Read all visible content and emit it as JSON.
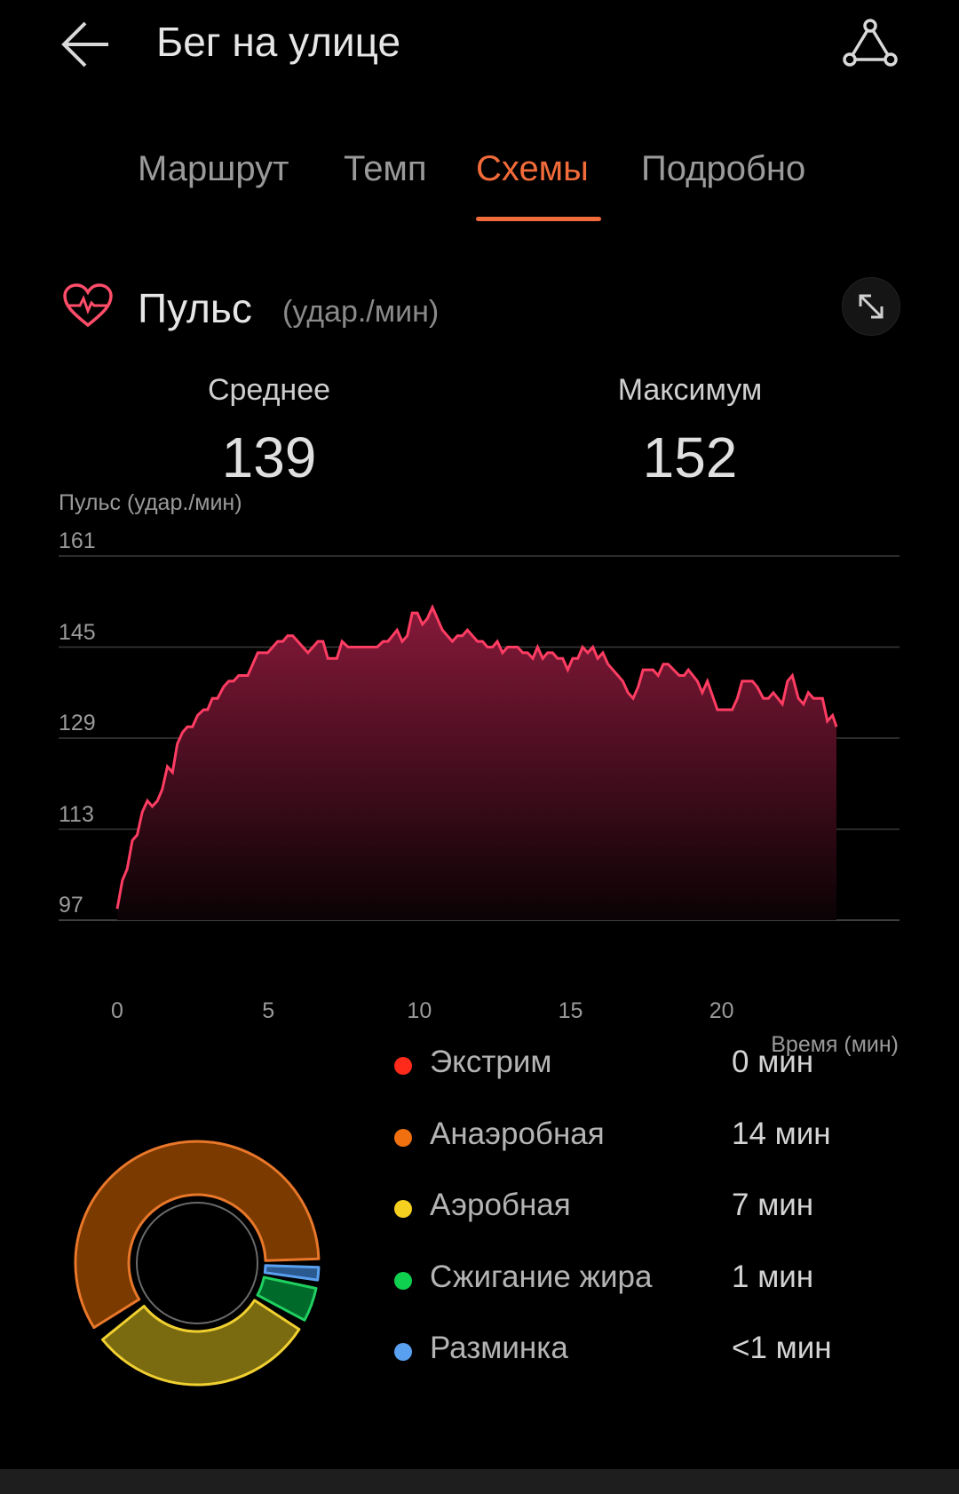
{
  "header": {
    "title": "Бег на улице",
    "back_icon": "arrow-left-icon",
    "share_icon": "route-share-icon"
  },
  "tabs": [
    {
      "label": "Маршрут"
    },
    {
      "label": "Темп"
    },
    {
      "label": "Схемы",
      "active": true
    },
    {
      "label": "Подробно"
    }
  ],
  "accent": "#f26b3a",
  "section": {
    "title": "Пульс",
    "unit": "(удар./мин)",
    "icon": "heart-pulse-icon",
    "expand_icon": "expand-icon"
  },
  "stats": {
    "avg_label": "Среднее",
    "avg_value": "139",
    "max_label": "Максимум",
    "max_value": "152"
  },
  "chart_data": {
    "type": "area",
    "ylabel": "Пульс (удар./мин)",
    "xlabel": "Время (мин)",
    "yticks": [
      "161",
      "145",
      "129",
      "113",
      "97"
    ],
    "xticks": [
      "0",
      "5",
      "10",
      "15",
      "20"
    ],
    "ylim": [
      97,
      161
    ],
    "xlim": [
      0,
      23.8
    ],
    "grid": true,
    "line_color": "#ff3d63",
    "x": [
      0,
      0.17,
      0.33,
      0.5,
      0.66,
      0.83,
      1.0,
      1.16,
      1.33,
      1.49,
      1.66,
      1.83,
      1.99,
      2.16,
      2.32,
      2.49,
      2.66,
      2.86,
      2.99,
      3.15,
      3.32,
      3.52,
      3.69,
      3.85,
      4.02,
      4.32,
      4.65,
      4.98,
      5.31,
      5.48,
      5.64,
      5.81,
      6.31,
      6.64,
      6.81,
      6.97,
      7.27,
      7.44,
      7.64,
      8.6,
      8.8,
      8.96,
      9.26,
      9.43,
      9.6,
      9.76,
      9.93,
      10.1,
      10.26,
      10.43,
      10.76,
      11.09,
      11.26,
      11.42,
      11.59,
      11.92,
      12.09,
      12.25,
      12.42,
      12.58,
      12.75,
      12.92,
      13.25,
      13.42,
      13.58,
      13.75,
      13.91,
      14.08,
      14.24,
      14.41,
      14.57,
      14.74,
      14.91,
      15.07,
      15.24,
      15.4,
      15.57,
      15.74,
      15.9,
      16.07,
      16.24,
      16.73,
      16.9,
      17.07,
      17.24,
      17.4,
      17.73,
      17.9,
      18.07,
      18.23,
      18.6,
      18.76,
      18.9,
      19.2,
      19.36,
      19.53,
      19.86,
      20.35,
      20.52,
      20.68,
      21.02,
      21.18,
      21.38,
      21.55,
      21.71,
      22.01,
      22.18,
      22.34,
      22.54,
      22.71,
      22.87,
      23.04,
      23.34,
      23.5,
      23.67,
      23.8
    ],
    "y": [
      99,
      104,
      106,
      111,
      112,
      116,
      118,
      117,
      118,
      120,
      124,
      123,
      128,
      130,
      131,
      131,
      133,
      134,
      134,
      136,
      136,
      138,
      139,
      139,
      140,
      140,
      144,
      144,
      146,
      146,
      147,
      147,
      144,
      146,
      146,
      143,
      143,
      146,
      145,
      145,
      146,
      146,
      148,
      146,
      147,
      151,
      151,
      149,
      150,
      152,
      148,
      146,
      147,
      147,
      148,
      146,
      146,
      145,
      145,
      146,
      144,
      145,
      145,
      144,
      144,
      143,
      145,
      143,
      144,
      144,
      143,
      143,
      141,
      143,
      143,
      145,
      144,
      145,
      143,
      144,
      142,
      139,
      137,
      136,
      138,
      141,
      141,
      140,
      142,
      142,
      140,
      140,
      141,
      139,
      137,
      139,
      134,
      134,
      136,
      139,
      139,
      138,
      136,
      136,
      137,
      135,
      139,
      140,
      136,
      135,
      137,
      136,
      136,
      132,
      133,
      131
    ]
  },
  "zones": [
    {
      "name": "Экстрим",
      "value": "0 мин",
      "color": "#ff2a1a"
    },
    {
      "name": "Анаэробная",
      "value": "14 мин",
      "color": "#f07010",
      "fill": "#7a3a00",
      "stroke": "#e8772a"
    },
    {
      "name": "Аэробная",
      "value": "7 мин",
      "color": "#f5d020",
      "fill": "#7a6a10",
      "stroke": "#f0d030"
    },
    {
      "name": "Сжигание жира",
      "value": "1 мин",
      "color": "#10d050",
      "fill": "#006a2a",
      "stroke": "#1fd060"
    },
    {
      "name": "Разминка",
      "value": "<1 мин",
      "color": "#5aa0f0",
      "fill": "#2a5a90",
      "stroke": "#5aa0f0"
    }
  ]
}
